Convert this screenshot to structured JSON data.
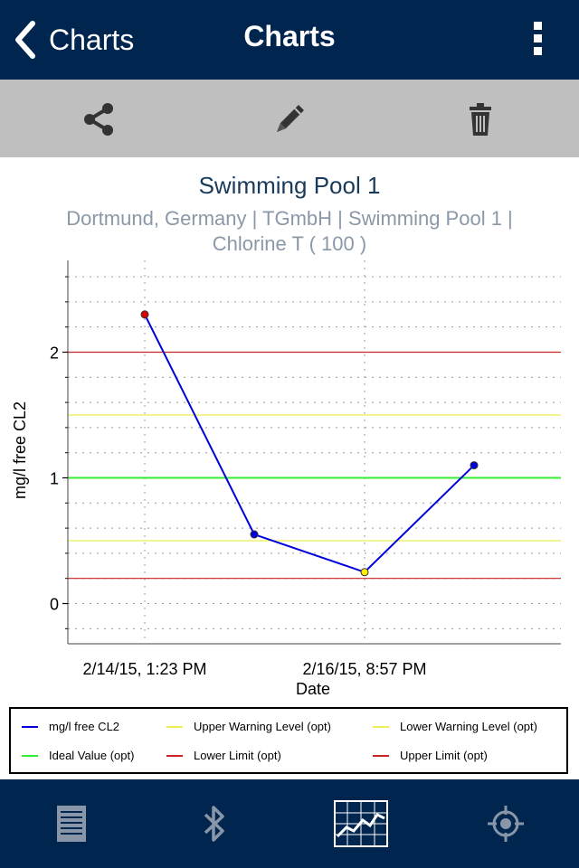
{
  "nav": {
    "back_label": "Charts",
    "title": "Charts",
    "back_icon": "chevron-left-icon",
    "menu_icon": "more-vertical-icon"
  },
  "toolbar": {
    "items": [
      {
        "icon": "share-icon"
      },
      {
        "icon": "pencil-icon"
      },
      {
        "icon": "trash-icon"
      }
    ]
  },
  "chart_data": {
    "type": "line",
    "title": "Swimming Pool 1",
    "subtitle_line1": "Dortmund, Germany | TGmbH | Swimming Pool 1 |",
    "subtitle_line2": "Chlorine T ( 100 )",
    "xlabel": "Date",
    "ylabel": "mg/l free CL2",
    "x_tick_labels": [
      "2/14/15, 1:23 PM",
      "2/16/15, 8:57 PM"
    ],
    "y_tick_labels": [
      "0",
      "1",
      "2"
    ],
    "ylim": [
      -0.32,
      2.73
    ],
    "grid": true,
    "series": [
      {
        "name": "mg/l free CL2",
        "color": "#0000dd",
        "x": [
          "2/14/15, 1:23 PM",
          "2/15/15",
          "2/16/15, 8:57 PM",
          "2/17/15"
        ],
        "values": [
          2.3,
          0.55,
          0.25,
          1.1
        ],
        "point_colors": [
          "#dd0000",
          "#0000dd",
          "#ffee00",
          "#0000dd"
        ]
      }
    ],
    "reference_lines": [
      {
        "name": "Upper Warning Level (opt)",
        "value": 1.5,
        "color": "#eeee55"
      },
      {
        "name": "Lower Warning Level (opt)",
        "value": 0.5,
        "color": "#eeee55"
      },
      {
        "name": "Ideal Value (opt)",
        "value": 1.0,
        "color": "#33ee33"
      },
      {
        "name": "Lower Limit (opt)",
        "value": 0.2,
        "color": "#cc2222"
      },
      {
        "name": "Upper Limit (opt)",
        "value": 2.0,
        "color": "#cc2222"
      }
    ],
    "legend_position": "bottom",
    "legend": [
      {
        "label": "mg/l free CL2",
        "color": "#0000dd"
      },
      {
        "label": "Upper Warning Level (opt)",
        "color": "#eeee55"
      },
      {
        "label": "Lower Warning Level (opt)",
        "color": "#eeee55"
      },
      {
        "label": "Ideal Value (opt)",
        "color": "#33ee33"
      },
      {
        "label": "Lower Limit (opt)",
        "color": "#cc2222"
      },
      {
        "label": "Upper Limit (opt)",
        "color": "#cc2222"
      }
    ]
  },
  "tabbar": {
    "items": [
      {
        "icon": "list-icon",
        "active": false
      },
      {
        "icon": "bluetooth-icon",
        "active": false
      },
      {
        "icon": "chart-icon",
        "active": true
      },
      {
        "icon": "location-icon",
        "active": false
      }
    ]
  }
}
